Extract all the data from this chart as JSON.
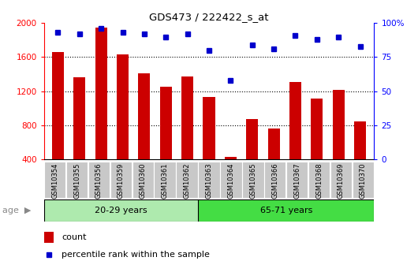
{
  "title": "GDS473 / 222422_s_at",
  "samples": [
    "GSM10354",
    "GSM10355",
    "GSM10356",
    "GSM10359",
    "GSM10360",
    "GSM10361",
    "GSM10362",
    "GSM10363",
    "GSM10364",
    "GSM10365",
    "GSM10366",
    "GSM10367",
    "GSM10368",
    "GSM10369",
    "GSM10370"
  ],
  "counts": [
    1660,
    1360,
    1950,
    1630,
    1410,
    1250,
    1370,
    1130,
    430,
    870,
    760,
    1310,
    1110,
    1210,
    840
  ],
  "percentiles": [
    93,
    92,
    96,
    93,
    92,
    90,
    92,
    80,
    58,
    84,
    81,
    91,
    88,
    90,
    83
  ],
  "group1_label": "20-29 years",
  "group1_count": 7,
  "group1_color": "#aeeaae",
  "group2_label": "65-71 years",
  "group2_count": 8,
  "group2_color": "#44dd44",
  "ylim_left": [
    400,
    2000
  ],
  "ylim_right": [
    0,
    100
  ],
  "yticks_left": [
    400,
    800,
    1200,
    1600,
    2000
  ],
  "yticks_right": [
    0,
    25,
    50,
    75,
    100
  ],
  "grid_lines": [
    800,
    1200,
    1600
  ],
  "bar_color": "#CC0000",
  "dot_color": "#0000CC",
  "bar_width": 0.55,
  "bg_color": "#FFFFFF",
  "tick_label_bg": "#C8C8C8",
  "legend_count_color": "#CC0000",
  "legend_pct_color": "#0000CC"
}
